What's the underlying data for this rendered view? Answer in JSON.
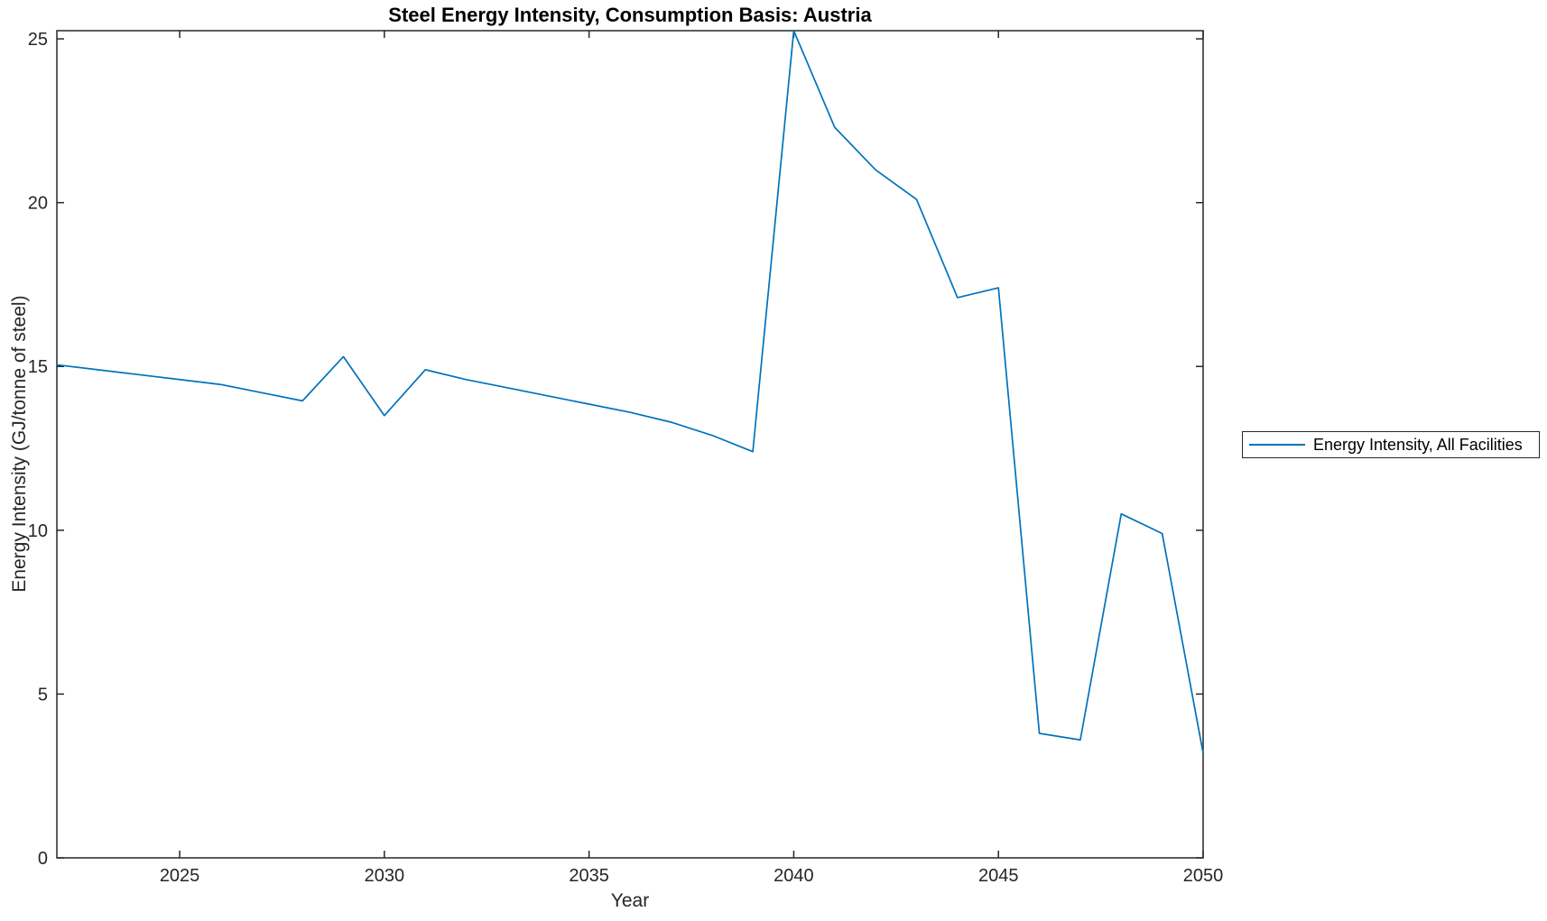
{
  "figure": {
    "background": "#ffffff",
    "axis_color": "#262626"
  },
  "title": "Steel Energy Intensity, Consumption Basis: Austria",
  "legend": {
    "entries": [
      {
        "label": "Energy Intensity, All Facilities",
        "color": "#0072BD"
      }
    ],
    "position": "right-outside"
  },
  "chart_data": {
    "type": "line",
    "title": "Steel Energy Intensity, Consumption Basis: Austria",
    "xlabel": "Year",
    "ylabel": "Energy Intensity (GJ/tonne of steel)",
    "xlim": [
      2022,
      2050
    ],
    "ylim": [
      0,
      25.25
    ],
    "x_ticks": [
      2025,
      2030,
      2035,
      2040,
      2045,
      2050
    ],
    "y_ticks": [
      0,
      5,
      10,
      15,
      20,
      25
    ],
    "grid": false,
    "box": true,
    "legend_position": "right-outside",
    "x": [
      2022,
      2023,
      2024,
      2025,
      2026,
      2027,
      2028,
      2029,
      2030,
      2031,
      2032,
      2033,
      2034,
      2035,
      2036,
      2037,
      2038,
      2039,
      2040,
      2041,
      2042,
      2043,
      2044,
      2045,
      2046,
      2047,
      2048,
      2049,
      2050
    ],
    "series": [
      {
        "name": "Energy Intensity, All Facilities",
        "color": "#0072BD",
        "values": [
          15.05,
          14.9,
          14.75,
          14.6,
          14.45,
          14.2,
          13.95,
          15.3,
          13.5,
          14.9,
          14.6,
          14.35,
          14.1,
          13.85,
          13.6,
          13.3,
          12.9,
          12.4,
          25.25,
          22.3,
          21.0,
          20.1,
          17.1,
          17.4,
          3.8,
          3.6,
          10.5,
          9.9,
          3.2
        ]
      }
    ]
  }
}
